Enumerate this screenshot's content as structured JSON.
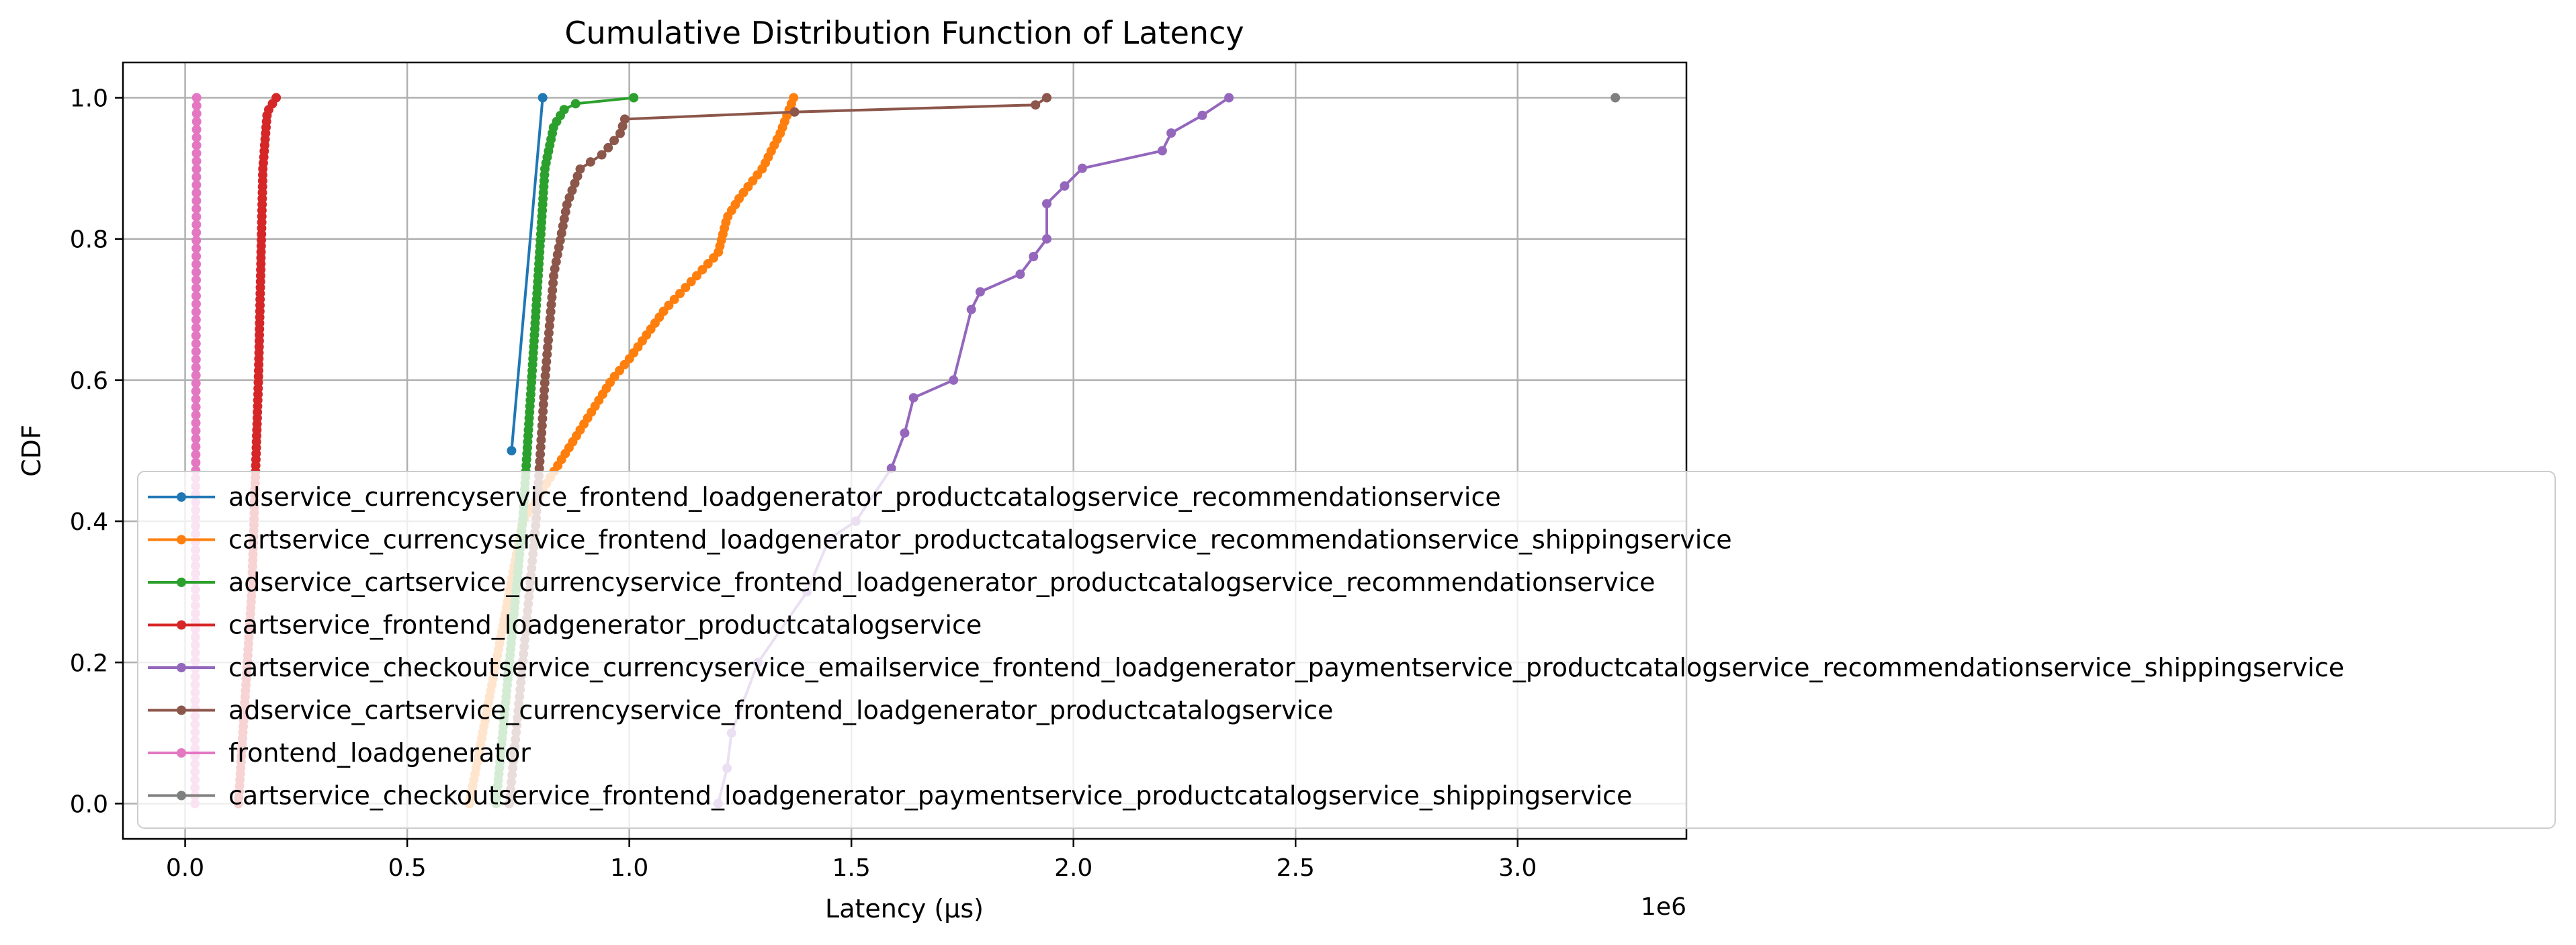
{
  "chart_data": {
    "type": "line",
    "title": "Cumulative Distribution Function of Latency",
    "xlabel": "Latency (µs)",
    "ylabel": "CDF",
    "x_offset_label": "1e6",
    "xlim": [
      -140000,
      3380000
    ],
    "ylim": [
      -0.05,
      1.05
    ],
    "xscale": "linear",
    "grid": true,
    "legend_position": "lower-left",
    "xticks": [
      0,
      500000,
      1000000,
      1500000,
      2000000,
      2500000,
      3000000
    ],
    "xtick_labels": [
      "0.0",
      "0.5",
      "1.0",
      "1.5",
      "2.0",
      "2.5",
      "3.0"
    ],
    "yticks": [
      0.0,
      0.2,
      0.4,
      0.6,
      0.8,
      1.0
    ],
    "ytick_labels": [
      "0.0",
      "0.2",
      "0.4",
      "0.6",
      "0.8",
      "1.0"
    ],
    "series": [
      {
        "name": "adservice_currencyservice_frontend_loadgenerator_productcatalogservice_recommendationservice",
        "color": "#1f77b4",
        "generator": "points",
        "points": [
          [
            735000,
            0.5
          ],
          [
            805000,
            1.0
          ]
        ]
      },
      {
        "name": "cartservice_currencyservice_frontend_loadgenerator_productcatalogservice_recommendationservice_shippingservice",
        "color": "#ff7f0e",
        "generator": "interp",
        "n": 120,
        "anchors": [
          [
            640000,
            0.0
          ],
          [
            700000,
            0.2
          ],
          [
            760000,
            0.4
          ],
          [
            860000,
            0.5
          ],
          [
            960000,
            0.6
          ],
          [
            1000000,
            0.63
          ],
          [
            1080000,
            0.7
          ],
          [
            1200000,
            0.78
          ],
          [
            1220000,
            0.83
          ],
          [
            1250000,
            0.86
          ],
          [
            1300000,
            0.9
          ],
          [
            1340000,
            0.95
          ],
          [
            1370000,
            1.0
          ]
        ]
      },
      {
        "name": "adservice_cartservice_currencyservice_frontend_loadgenerator_productcatalogservice_recommendationservice",
        "color": "#2ca02c",
        "generator": "interp",
        "n": 120,
        "anchors": [
          [
            700000,
            0.0
          ],
          [
            760000,
            0.4
          ],
          [
            790000,
            0.7
          ],
          [
            810000,
            0.9
          ],
          [
            830000,
            0.96
          ],
          [
            860000,
            0.99
          ],
          [
            920000,
            0.995
          ],
          [
            1010000,
            1.0
          ]
        ]
      },
      {
        "name": "cartservice_frontend_loadgenerator_productcatalogservice",
        "color": "#d62728",
        "generator": "interp",
        "n": 120,
        "anchors": [
          [
            120000,
            0.0
          ],
          [
            150000,
            0.3
          ],
          [
            165000,
            0.6
          ],
          [
            175000,
            0.9
          ],
          [
            185000,
            0.98
          ],
          [
            205000,
            1.0
          ]
        ]
      },
      {
        "name": "cartservice_checkoutservice_currencyservice_emailservice_frontend_loadgenerator_paymentservice_productcatalogservice_recommendationservice_shippingservice",
        "color": "#9467bd",
        "generator": "points",
        "points": [
          [
            1200000,
            0.0
          ],
          [
            1220000,
            0.05
          ],
          [
            1230000,
            0.1
          ],
          [
            1290000,
            0.2
          ],
          [
            1400000,
            0.3
          ],
          [
            1450000,
            0.375
          ],
          [
            1510000,
            0.4
          ],
          [
            1590000,
            0.475
          ],
          [
            1620000,
            0.525
          ],
          [
            1640000,
            0.575
          ],
          [
            1730000,
            0.6
          ],
          [
            1770000,
            0.7
          ],
          [
            1790000,
            0.725
          ],
          [
            1880000,
            0.75
          ],
          [
            1910000,
            0.775
          ],
          [
            1940000,
            0.8
          ],
          [
            1940000,
            0.85
          ],
          [
            1980000,
            0.875
          ],
          [
            2020000,
            0.9
          ],
          [
            2200000,
            0.925
          ],
          [
            2220000,
            0.95
          ],
          [
            2290000,
            0.975
          ],
          [
            2350000,
            1.0
          ]
        ]
      },
      {
        "name": "adservice_cartservice_currencyservice_frontend_loadgenerator_productcatalogservice",
        "color": "#8c564b",
        "generator": "interp",
        "n": 100,
        "anchors": [
          [
            730000,
            0.0
          ],
          [
            790000,
            0.4
          ],
          [
            810000,
            0.6
          ],
          [
            830000,
            0.75
          ],
          [
            860000,
            0.85
          ],
          [
            890000,
            0.9
          ],
          [
            940000,
            0.92
          ],
          [
            980000,
            0.95
          ],
          [
            990000,
            0.97
          ],
          [
            1380000,
            0.98
          ],
          [
            1920000,
            0.99
          ],
          [
            1940000,
            1.0
          ]
        ]
      },
      {
        "name": "frontend_loadgenerator",
        "color": "#e377c2",
        "generator": "interp",
        "n": 90,
        "anchors": [
          [
            22000,
            0.0
          ],
          [
            26000,
            1.0
          ]
        ]
      },
      {
        "name": "cartservice_checkoutservice_frontend_loadgenerator_paymentservice_productcatalogservice_shippingservice",
        "color": "#7f7f7f",
        "generator": "points",
        "points": [
          [
            3220000,
            1.0
          ]
        ]
      }
    ]
  }
}
